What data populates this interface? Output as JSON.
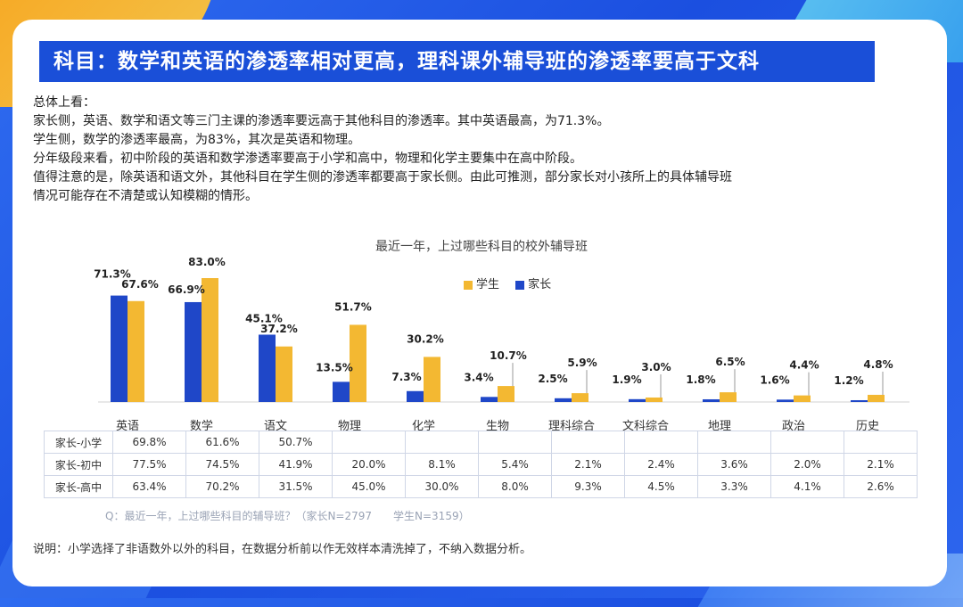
{
  "title": "科目：数学和英语的渗透率相对更高，理科课外辅导班的渗透率要高于文科",
  "summary": [
    "总体上看：",
    "家长侧，英语、数学和语文等三门主课的渗透率要远高于其他科目的渗透率。其中英语最高，为71.3%。",
    "学生侧，数学的渗透率最高，为83%，其次是英语和物理。",
    "分年级段来看，初中阶段的英语和数学渗透率要高于小学和高中，物理和化学主要集中在高中阶段。",
    "值得注意的是，除英语和语文外，其他科目在学生侧的渗透率都要高于家长侧。由此可推测，部分家长对小孩所上的具体辅导班",
    "情况可能存在不清楚或认知模糊的情形。"
  ],
  "colors": {
    "parent": "#1f47c8",
    "student": "#f3b832",
    "title_bg": "#1a4fd8"
  },
  "chart_data": {
    "type": "bar",
    "title": "最近一年，上过哪些科目的校外辅导班",
    "categories": [
      "英语",
      "数学",
      "语文",
      "物理",
      "化学",
      "生物",
      "理科综合",
      "文科综合",
      "地理",
      "政治",
      "历史"
    ],
    "series": [
      {
        "name": "家长",
        "values": [
          71.3,
          66.9,
          45.1,
          13.5,
          7.3,
          3.4,
          2.5,
          1.9,
          1.8,
          1.6,
          1.2
        ]
      },
      {
        "name": "学生",
        "values": [
          67.6,
          83.0,
          37.2,
          51.7,
          30.2,
          10.7,
          5.9,
          3.0,
          6.5,
          4.4,
          4.8
        ]
      }
    ],
    "parent_labels": [
      "71.3%",
      "66.9%",
      "45.1%",
      "13.5%",
      "7.3%",
      "3.4%",
      "2.5%",
      "1.9%",
      "1.8%",
      "1.6%",
      "1.2%"
    ],
    "student_labels": [
      "67.6%",
      "83.0%",
      "37.2%",
      "51.7%",
      "30.2%",
      "10.7%",
      "5.9%",
      "3.0%",
      "6.5%",
      "4.4%",
      "4.8%"
    ],
    "legend": [
      "学生",
      "家长"
    ],
    "ylim": [
      0,
      90
    ],
    "table": [
      {
        "label": "家长-小学",
        "values": [
          "69.8%",
          "61.6%",
          "50.7%",
          "",
          "",
          "",
          "",
          "",
          "",
          "",
          ""
        ]
      },
      {
        "label": "家长-初中",
        "values": [
          "77.5%",
          "74.5%",
          "41.9%",
          "20.0%",
          "8.1%",
          "5.4%",
          "2.1%",
          "2.4%",
          "3.6%",
          "2.0%",
          "2.1%"
        ]
      },
      {
        "label": "家长-高中",
        "values": [
          "63.4%",
          "70.2%",
          "31.5%",
          "45.0%",
          "30.0%",
          "8.0%",
          "9.3%",
          "4.5%",
          "3.3%",
          "4.1%",
          "2.6%"
        ]
      }
    ]
  },
  "question_note": "Q：最近一年，上过哪些科目的辅导班？（家长N=2797　　学生N=3159）",
  "bottom_note": "说明：小学选择了非语数外以外的科目，在数据分析前以作无效样本清洗掉了，不纳入数据分析。"
}
